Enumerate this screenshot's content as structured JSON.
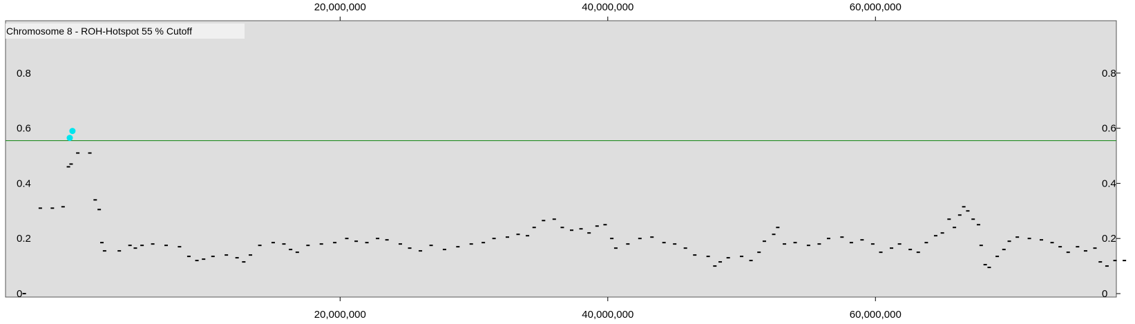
{
  "chart_data": {
    "type": "scatter",
    "title": "Chromosome 8 - ROH-Hotspot 55 % Cutoff",
    "xlabel": "",
    "ylabel": "",
    "xlim": [
      -5000000,
      78000000
    ],
    "ylim": [
      0,
      1.0
    ],
    "x_ticks": [
      20000000,
      40000000,
      60000000
    ],
    "x_tick_labels": [
      "20,000,000",
      "40,000,000",
      "60,000,000"
    ],
    "y_ticks": [
      0,
      0.2,
      0.4,
      0.6,
      0.8
    ],
    "y_tick_labels": [
      "0",
      "0.2",
      "0.4",
      "0.6",
      "0.8"
    ],
    "cutoff": 0.555,
    "background_color": "#dedede",
    "colors": {
      "points": "#000000",
      "hotspot_points": "#00e5ee",
      "cutoff_line": "#228b22"
    },
    "grid": false,
    "series": [
      {
        "values": [
          [
            -3600000,
            0.0
          ],
          [
            -2400000,
            0.31
          ],
          [
            -1500000,
            0.31
          ],
          [
            -700000,
            0.315
          ],
          [
            -300000,
            0.46
          ],
          [
            -100000,
            0.47
          ],
          [
            400000,
            0.51
          ],
          [
            1300000,
            0.51
          ],
          [
            1700000,
            0.34
          ],
          [
            2000000,
            0.305
          ],
          [
            2200000,
            0.185
          ],
          [
            2400000,
            0.155
          ],
          [
            3500000,
            0.155
          ],
          [
            4300000,
            0.175
          ],
          [
            4700000,
            0.165
          ],
          [
            5200000,
            0.175
          ],
          [
            6000000,
            0.18
          ],
          [
            7000000,
            0.175
          ],
          [
            8000000,
            0.17
          ],
          [
            8700000,
            0.135
          ],
          [
            9300000,
            0.12
          ],
          [
            9800000,
            0.125
          ],
          [
            10500000,
            0.135
          ],
          [
            11500000,
            0.14
          ],
          [
            12300000,
            0.13
          ],
          [
            12800000,
            0.115
          ],
          [
            13300000,
            0.14
          ],
          [
            14000000,
            0.175
          ],
          [
            15000000,
            0.185
          ],
          [
            15800000,
            0.18
          ],
          [
            16300000,
            0.16
          ],
          [
            16800000,
            0.15
          ],
          [
            17600000,
            0.175
          ],
          [
            18600000,
            0.18
          ],
          [
            19600000,
            0.185
          ],
          [
            20500000,
            0.2
          ],
          [
            21200000,
            0.19
          ],
          [
            22000000,
            0.185
          ],
          [
            22800000,
            0.2
          ],
          [
            23500000,
            0.195
          ],
          [
            24500000,
            0.18
          ],
          [
            25200000,
            0.165
          ],
          [
            26000000,
            0.155
          ],
          [
            26800000,
            0.175
          ],
          [
            27800000,
            0.16
          ],
          [
            28800000,
            0.17
          ],
          [
            29800000,
            0.18
          ],
          [
            30700000,
            0.185
          ],
          [
            31500000,
            0.2
          ],
          [
            32500000,
            0.205
          ],
          [
            33300000,
            0.215
          ],
          [
            34000000,
            0.21
          ],
          [
            34500000,
            0.24
          ],
          [
            35200000,
            0.265
          ],
          [
            36000000,
            0.27
          ],
          [
            36600000,
            0.24
          ],
          [
            37300000,
            0.23
          ],
          [
            38000000,
            0.235
          ],
          [
            38600000,
            0.22
          ],
          [
            39200000,
            0.245
          ],
          [
            39800000,
            0.25
          ],
          [
            40300000,
            0.2
          ],
          [
            40600000,
            0.165
          ],
          [
            41500000,
            0.18
          ],
          [
            42400000,
            0.2
          ],
          [
            43300000,
            0.205
          ],
          [
            44200000,
            0.185
          ],
          [
            45000000,
            0.18
          ],
          [
            45800000,
            0.165
          ],
          [
            46500000,
            0.14
          ],
          [
            47500000,
            0.135
          ],
          [
            48000000,
            0.1
          ],
          [
            48400000,
            0.115
          ],
          [
            49000000,
            0.13
          ],
          [
            50000000,
            0.135
          ],
          [
            50700000,
            0.12
          ],
          [
            51300000,
            0.15
          ],
          [
            51700000,
            0.19
          ],
          [
            52400000,
            0.215
          ],
          [
            52700000,
            0.24
          ],
          [
            53200000,
            0.18
          ],
          [
            54000000,
            0.185
          ],
          [
            55000000,
            0.175
          ],
          [
            55800000,
            0.18
          ],
          [
            56500000,
            0.2
          ],
          [
            57500000,
            0.205
          ],
          [
            58200000,
            0.185
          ],
          [
            59000000,
            0.195
          ],
          [
            59800000,
            0.18
          ],
          [
            60400000,
            0.15
          ],
          [
            61200000,
            0.165
          ],
          [
            61800000,
            0.18
          ],
          [
            62600000,
            0.16
          ],
          [
            63200000,
            0.15
          ],
          [
            63800000,
            0.185
          ],
          [
            64500000,
            0.21
          ],
          [
            65000000,
            0.22
          ],
          [
            65500000,
            0.27
          ],
          [
            65900000,
            0.24
          ],
          [
            66300000,
            0.285
          ],
          [
            66600000,
            0.315
          ],
          [
            66900000,
            0.3
          ],
          [
            67300000,
            0.27
          ],
          [
            67700000,
            0.25
          ],
          [
            67900000,
            0.175
          ],
          [
            68200000,
            0.105
          ],
          [
            68500000,
            0.095
          ],
          [
            69100000,
            0.135
          ],
          [
            69600000,
            0.16
          ],
          [
            70000000,
            0.19
          ],
          [
            70600000,
            0.205
          ],
          [
            71500000,
            0.2
          ],
          [
            72400000,
            0.195
          ],
          [
            73200000,
            0.185
          ],
          [
            73800000,
            0.17
          ],
          [
            74400000,
            0.15
          ],
          [
            75100000,
            0.17
          ],
          [
            75700000,
            0.155
          ],
          [
            76400000,
            0.165
          ],
          [
            76800000,
            0.115
          ],
          [
            77300000,
            0.1
          ],
          [
            77900000,
            0.12
          ],
          [
            78600000,
            0.12
          ],
          [
            79600000,
            0.12
          ]
        ]
      },
      {
        "values": [
          [
            -200000,
            0.565
          ],
          [
            0,
            0.59
          ]
        ]
      }
    ]
  }
}
